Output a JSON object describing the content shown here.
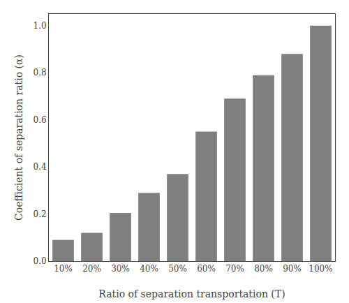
{
  "chart_data": {
    "type": "bar",
    "categories": [
      "10%",
      "20%",
      "30%",
      "40%",
      "50%",
      "60%",
      "70%",
      "80%",
      "90%",
      "100%"
    ],
    "values": [
      0.09,
      0.12,
      0.205,
      0.29,
      0.37,
      0.55,
      0.69,
      0.79,
      0.88,
      1.0
    ],
    "color": "#808080",
    "xlabel": "Ratio of separation transportation (T)",
    "ylabel": "Coefficient of separation ratio (α)",
    "ylim": [
      0.0,
      1.05
    ],
    "yticks": [
      {
        "value": 0.0,
        "label": "0.0"
      },
      0.2,
      0.4,
      0.6,
      0.8,
      {
        "value": 1.0,
        "label": "1.0"
      }
    ],
    "grid": false
  }
}
